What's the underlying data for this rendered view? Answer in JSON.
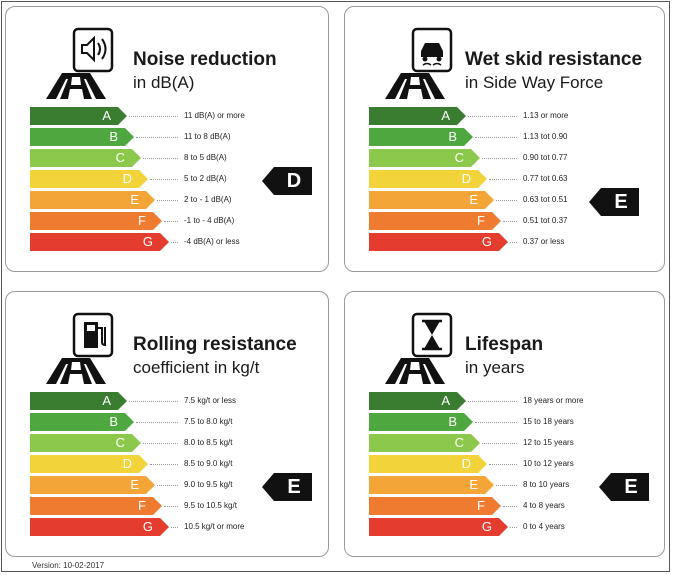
{
  "version": "Version: 10-02-2017",
  "classes": [
    "A",
    "B",
    "C",
    "D",
    "E",
    "F",
    "G"
  ],
  "colors": [
    "#3a7d30",
    "#4ea73f",
    "#8cc84b",
    "#f3d33a",
    "#f3a537",
    "#ee7b30",
    "#e43d30"
  ],
  "panels": [
    {
      "icon": "speaker-icon",
      "title": "Noise reduction",
      "subtitle": "in dB(A)",
      "ranges": [
        "11 dB(A) or more",
        "11 to 8 dB(A)",
        "8 to 5 dB(A)",
        "5 to 2 dB(A)",
        "2 to - 1 dB(A)",
        "-1 to - 4 dB(A)",
        "-4 dB(A) or less"
      ],
      "rating": "D"
    },
    {
      "icon": "skidding-car-icon",
      "title": "Wet skid resistance",
      "subtitle": "in Side Way Force",
      "ranges": [
        "1.13 or more",
        "1.13 tot 0.90",
        "0.90 tot 0.77",
        "0.77 tot 0.63",
        "0.63 tot 0.51",
        "0.51 tot 0.37",
        "0.37 or less"
      ],
      "rating": "E"
    },
    {
      "icon": "fuel-pump-icon",
      "title": "Rolling resistance",
      "subtitle": "coefficient in kg/t",
      "ranges": [
        "7.5 kg/t or less",
        "7.5 to 8.0 kg/t",
        "8.0 to 8.5 kg/t",
        "8.5 to 9.0 kg/t",
        "9.0 to 9.5 kg/t",
        "9.5 to 10.5 kg/t",
        "10.5 kg/t or more"
      ],
      "rating": "E"
    },
    {
      "icon": "hourglass-icon",
      "title": "Lifespan",
      "subtitle": "in years",
      "ranges": [
        "18 years or more",
        "15 to 18 years",
        "12 to 15 years",
        "10 to 12 years",
        "8 to 10 years",
        "4 to 8 years",
        "0 to 4 years"
      ],
      "rating": "E"
    }
  ]
}
